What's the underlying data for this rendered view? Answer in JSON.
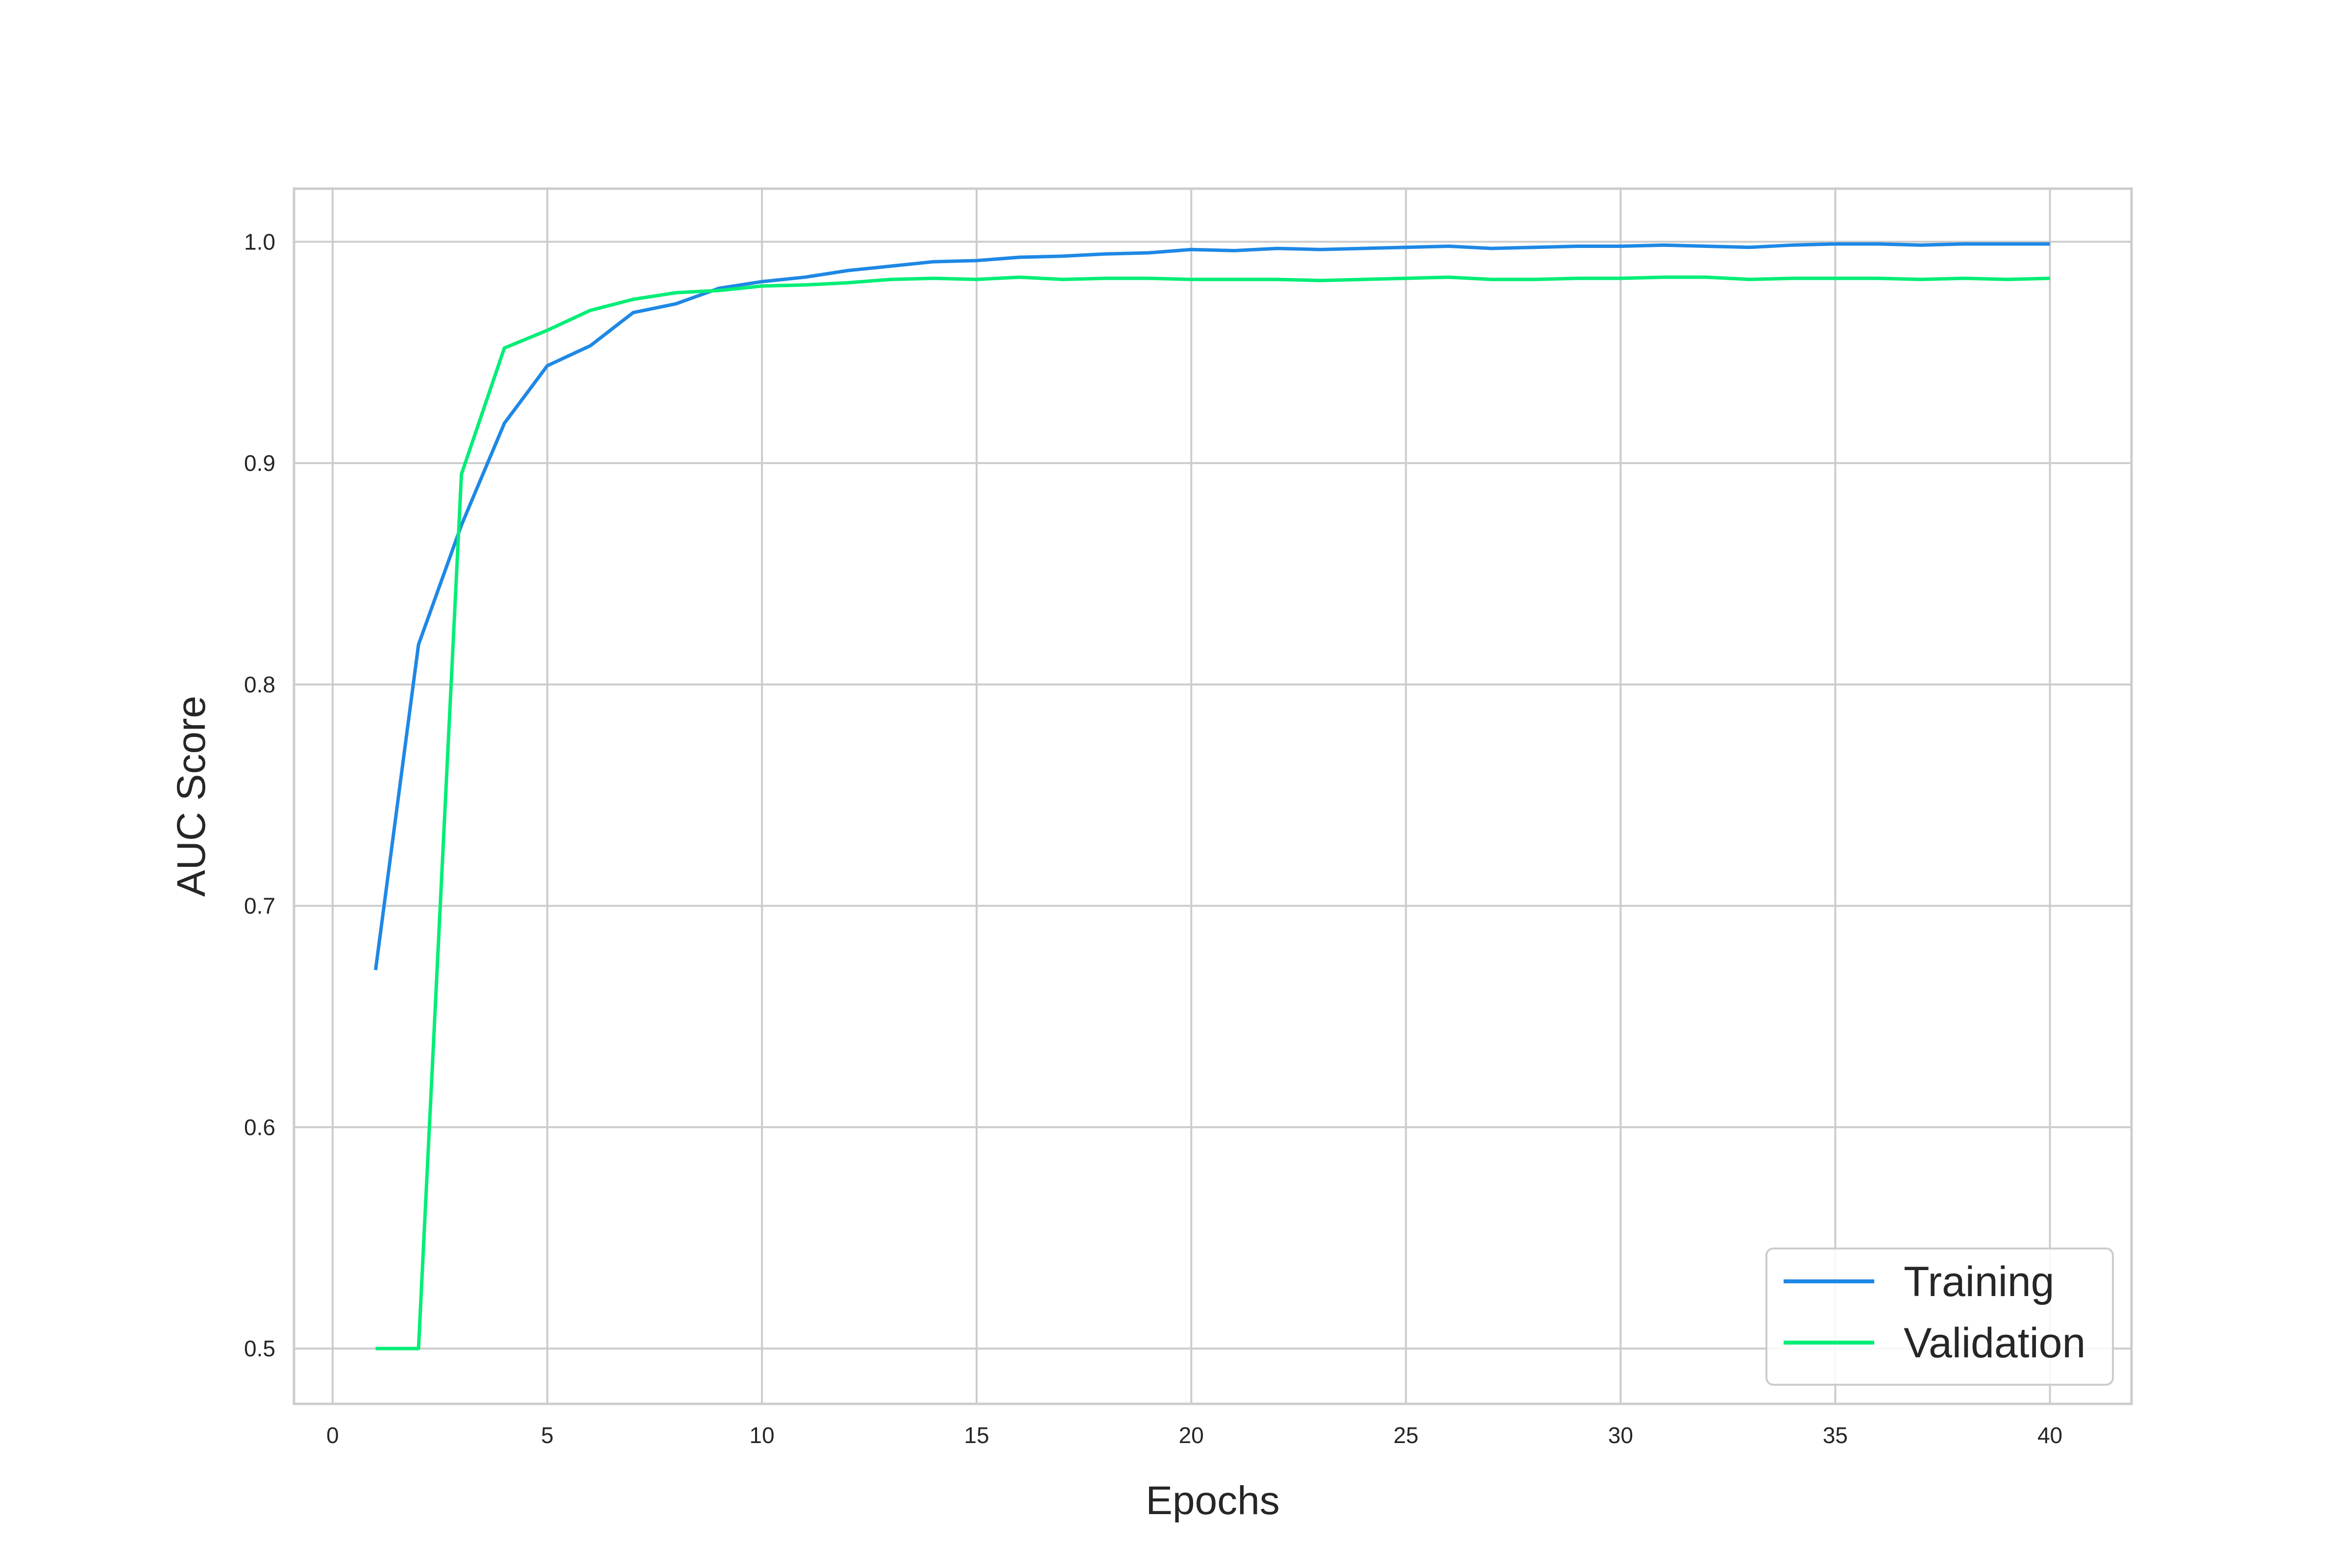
{
  "chart_data": {
    "type": "line",
    "title": "",
    "xlabel": "Epochs",
    "ylabel": "AUC Score",
    "xlim": [
      -0.9,
      41.9
    ],
    "ylim": [
      0.475,
      1.024
    ],
    "xticks": [
      0,
      5,
      10,
      15,
      20,
      25,
      30,
      35,
      40
    ],
    "xtick_labels": [
      "0",
      "5",
      "10",
      "15",
      "20",
      "25",
      "30",
      "35",
      "40"
    ],
    "yticks": [
      0.5,
      0.6,
      0.7,
      0.8,
      0.9,
      1.0
    ],
    "ytick_labels": [
      "0.5",
      "0.6",
      "0.7",
      "0.8",
      "0.9",
      "1.0"
    ],
    "grid": true,
    "legend_position": "lower-right",
    "x": [
      1,
      2,
      3,
      4,
      5,
      6,
      7,
      8,
      9,
      10,
      11,
      12,
      13,
      14,
      15,
      16,
      17,
      18,
      19,
      20,
      21,
      22,
      23,
      24,
      25,
      26,
      27,
      28,
      29,
      30,
      31,
      32,
      33,
      34,
      35,
      36,
      37,
      38,
      39,
      40
    ],
    "series": [
      {
        "name": "Training",
        "color": "#1e88e5",
        "values": [
          0.671,
          0.818,
          0.872,
          0.918,
          0.944,
          0.953,
          0.968,
          0.972,
          0.979,
          0.982,
          0.984,
          0.987,
          0.989,
          0.991,
          0.9915,
          0.993,
          0.9935,
          0.9945,
          0.995,
          0.9965,
          0.996,
          0.997,
          0.9965,
          0.997,
          0.9975,
          0.998,
          0.997,
          0.9975,
          0.998,
          0.998,
          0.9985,
          0.998,
          0.9975,
          0.9985,
          0.999,
          0.999,
          0.9985,
          0.999,
          0.999,
          0.999
        ]
      },
      {
        "name": "Validation",
        "color": "#00ee76",
        "values": [
          0.5,
          0.5,
          0.895,
          0.952,
          0.96,
          0.969,
          0.974,
          0.977,
          0.978,
          0.98,
          0.9805,
          0.9815,
          0.983,
          0.9835,
          0.983,
          0.984,
          0.983,
          0.9835,
          0.9835,
          0.983,
          0.983,
          0.983,
          0.9825,
          0.983,
          0.9835,
          0.984,
          0.983,
          0.983,
          0.9835,
          0.9835,
          0.984,
          0.984,
          0.983,
          0.9835,
          0.9835,
          0.9835,
          0.983,
          0.9835,
          0.983,
          0.9835
        ]
      }
    ]
  }
}
